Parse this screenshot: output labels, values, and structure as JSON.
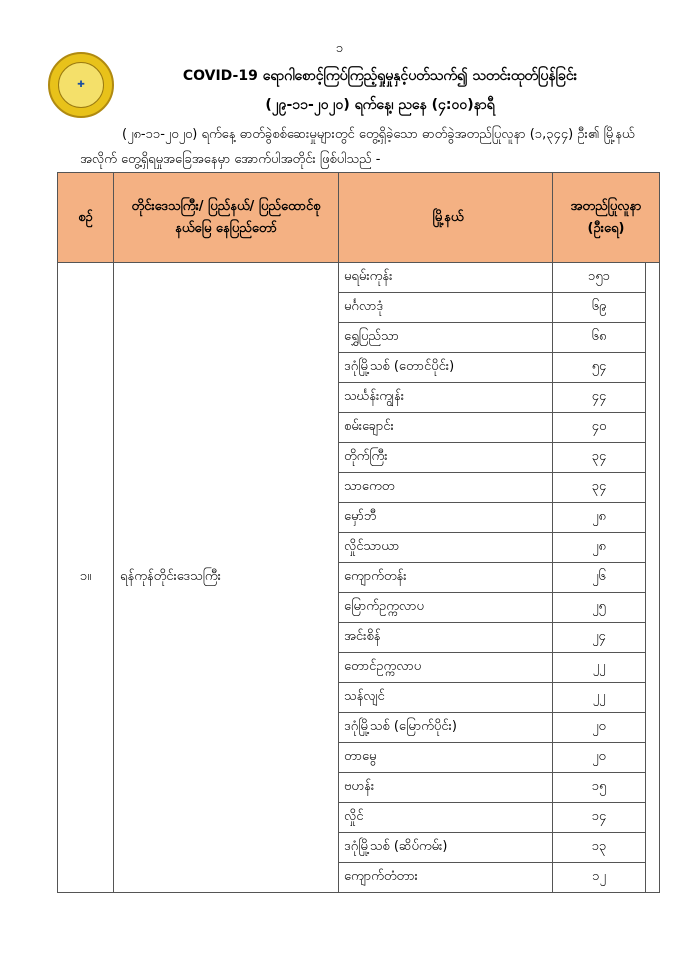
{
  "page_number": "၁",
  "logo_text": "MINISTRY OF HEALTH AND SPORTS",
  "title_line1": "COVID-19 ရောဂါစောင့်ကြပ်ကြည့်ရှုမှုနှင့်ပတ်သက်၍ သတင်းထုတ်ပြန်ခြင်း",
  "title_line2": "(၂၉-၁၁-၂၀၂၀) ရက်နေ့၊ ညနေ (၄:၀၀)နာရီ",
  "intro": "(၂၈-၁၁-၂၀၂၀) ရက်နေ့ ဓာတ်ခွဲစစ်ဆေးမှုများတွင် တွေ့ရှိခဲ့သော ဓာတ်ခွဲအတည်ပြုလူနာ (၁,၃၄၄) ဦး၏ မြို့နယ်အလိုက် တွေ့ရှိရမှုအခြေအနေမှာ အောက်ပါအတိုင်း ဖြစ်ပါသည် -",
  "table": {
    "headers": {
      "no": "စဉ်",
      "region": "တိုင်းဒေသကြီး/ ပြည်နယ်/ ပြည်ထောင်စုနယ်မြေ နေပြည်တော်",
      "township": "မြို့နယ်",
      "count": "အတည်ပြုလူနာ (ဦးရေ)"
    },
    "group": {
      "no": "၁။",
      "region": "ရန်ကုန်တိုင်းဒေသကြီး"
    },
    "rows": [
      {
        "township": "မရမ်းကုန်း",
        "count": "၁၅၁"
      },
      {
        "township": "မင်္ဂလာဒုံ",
        "count": "၆၉"
      },
      {
        "township": "ရွှေပြည်သာ",
        "count": "၆၈"
      },
      {
        "township": "ဒဂုံမြို့သစ် (တောင်ပိုင်း)",
        "count": "၅၄"
      },
      {
        "township": "သင်္ဃန်းကျွန်း",
        "count": "၄၄"
      },
      {
        "township": "စမ်းချောင်း",
        "count": "၄၀"
      },
      {
        "township": "တိုက်ကြီး",
        "count": "၃၄"
      },
      {
        "township": "သာကေတ",
        "count": "၃၄"
      },
      {
        "township": "မှော်ဘီ",
        "count": "၂၈"
      },
      {
        "township": "လှိုင်သာယာ",
        "count": "၂၈"
      },
      {
        "township": "ကျောက်တန်း",
        "count": "၂၆"
      },
      {
        "township": "မြောက်ဥက္ကလာပ",
        "count": "၂၅"
      },
      {
        "township": "အင်းစိန်",
        "count": "၂၄"
      },
      {
        "township": "တောင်ဥက္ကလာပ",
        "count": "၂၂"
      },
      {
        "township": "သန်လျင်",
        "count": "၂၂"
      },
      {
        "township": "ဒဂုံမြို့သစ် (မြောက်ပိုင်း)",
        "count": "၂၀"
      },
      {
        "township": "တာမွေ",
        "count": "၂၀"
      },
      {
        "township": "ဗဟန်း",
        "count": "၁၅"
      },
      {
        "township": "လှိုင်",
        "count": "၁၄"
      },
      {
        "township": "ဒဂုံမြို့သစ် (ဆိပ်ကမ်း)",
        "count": "၁၃"
      },
      {
        "township": "ကျောက်တံတား",
        "count": "၁၂"
      }
    ]
  },
  "colors": {
    "header_bg": "#f4b183",
    "logo": "#e8c21a"
  }
}
